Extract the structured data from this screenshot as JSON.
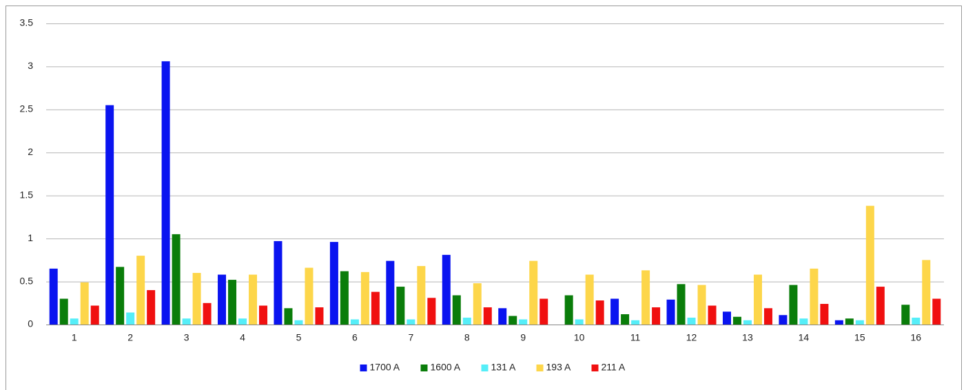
{
  "chart_data": {
    "type": "bar",
    "categories": [
      "1",
      "2",
      "3",
      "4",
      "5",
      "6",
      "7",
      "8",
      "9",
      "10",
      "11",
      "12",
      "13",
      "14",
      "15",
      "16"
    ],
    "series": [
      {
        "name": "1700 A",
        "color": "#0a14f0",
        "values": [
          0.65,
          2.55,
          3.06,
          0.58,
          0.97,
          0.96,
          0.74,
          0.81,
          0.19,
          null,
          0.3,
          0.29,
          0.15,
          0.11,
          0.05,
          null
        ]
      },
      {
        "name": "1600 A",
        "color": "#0a7d0a",
        "values": [
          0.3,
          0.67,
          1.05,
          0.52,
          0.19,
          0.62,
          0.44,
          0.34,
          0.1,
          0.34,
          0.12,
          0.47,
          0.09,
          0.46,
          0.07,
          0.23
        ]
      },
      {
        "name": "131 A",
        "color": "#55eef8",
        "values": [
          0.07,
          0.14,
          0.07,
          0.07,
          0.05,
          0.06,
          0.06,
          0.08,
          0.06,
          0.06,
          0.05,
          0.08,
          0.05,
          0.07,
          0.05,
          0.08
        ]
      },
      {
        "name": "193 A",
        "color": "#fdd64a",
        "values": [
          0.49,
          0.8,
          0.6,
          0.58,
          0.66,
          0.61,
          0.68,
          0.48,
          0.74,
          0.58,
          0.63,
          0.46,
          0.58,
          0.65,
          1.38,
          0.75
        ]
      },
      {
        "name": "211 A",
        "color": "#f01010",
        "values": [
          0.22,
          0.4,
          0.25,
          0.22,
          0.2,
          0.38,
          0.31,
          0.2,
          0.3,
          0.28,
          0.2,
          0.22,
          0.19,
          0.24,
          0.44,
          0.3
        ]
      }
    ],
    "ylim": [
      0,
      3.5
    ],
    "yticks": [
      0,
      0.5,
      1,
      1.5,
      2,
      2.5,
      3,
      3.5
    ],
    "grid": true,
    "legend": "bottom"
  }
}
